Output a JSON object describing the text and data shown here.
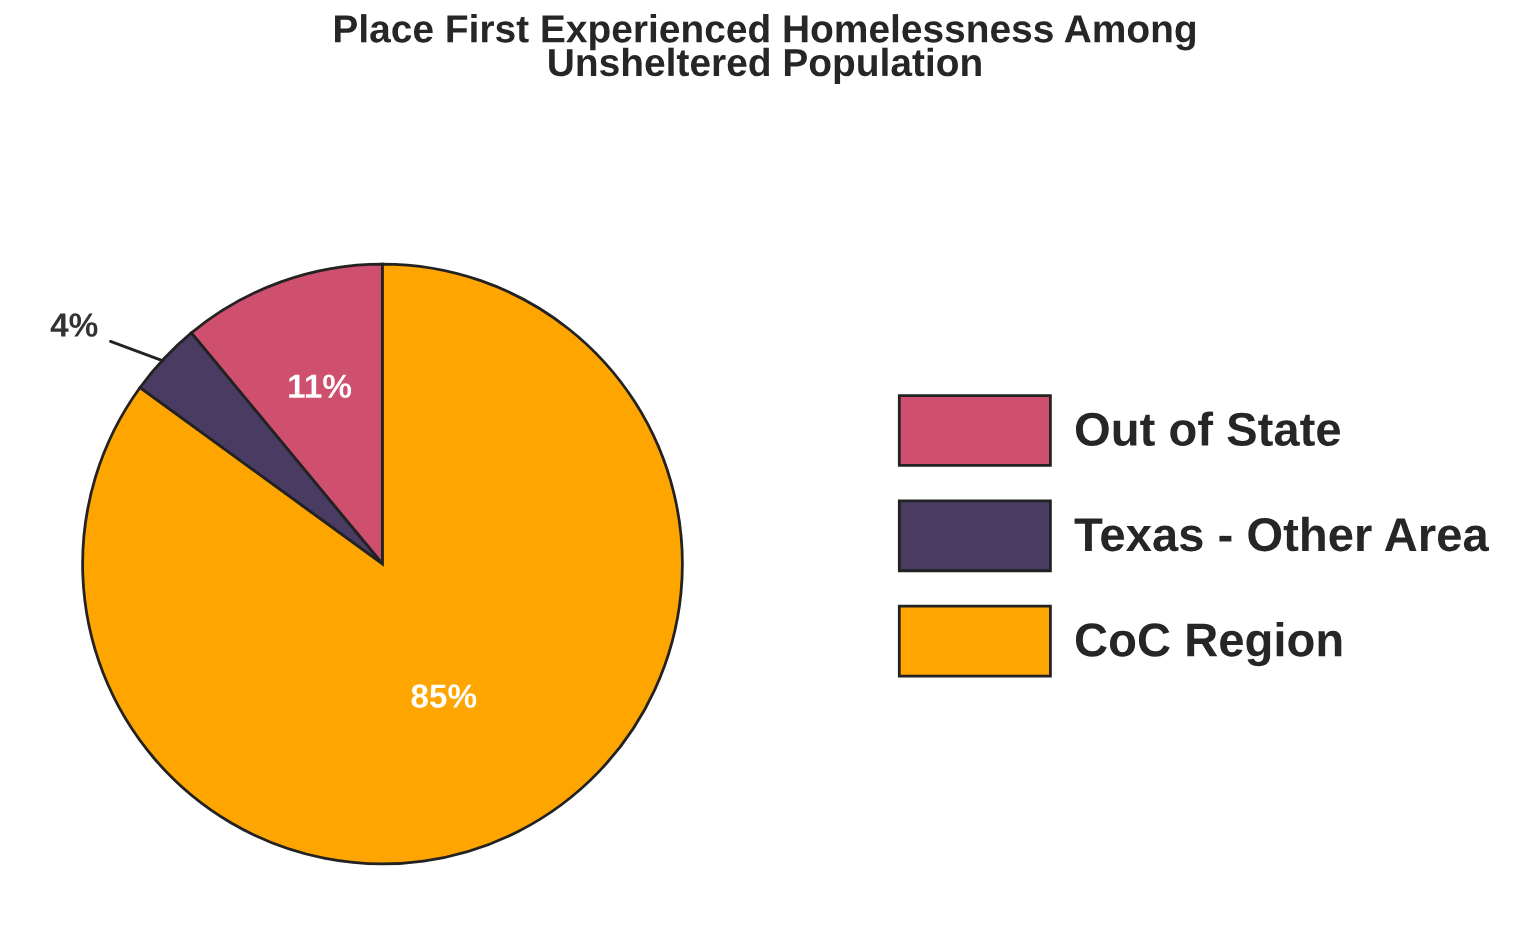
{
  "chart_data": {
    "type": "pie",
    "title": "Place First Experienced Homelessness Among\nUnsheltered Population",
    "categories": [
      "Out of State",
      "Texas - Other Area",
      "CoC Region"
    ],
    "values": [
      11,
      4,
      85
    ],
    "colors": [
      "#cf4f6e",
      "#4a3b63",
      "#ffa500"
    ],
    "value_labels": [
      "11%",
      "4%",
      "85%"
    ],
    "legend": "right"
  }
}
